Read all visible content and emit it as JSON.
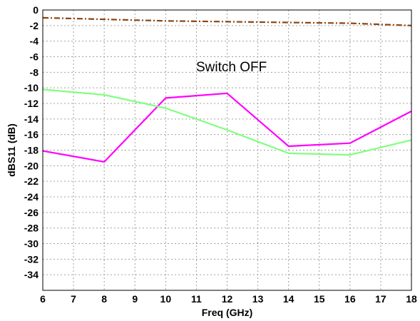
{
  "chart_data": {
    "type": "line",
    "xlabel": "Freq (GHz)",
    "ylabel": "dBS11 (dB)",
    "xlim": [
      6,
      18
    ],
    "ylim": [
      -36,
      0
    ],
    "x_ticks": [
      6,
      7,
      8,
      9,
      10,
      11,
      12,
      13,
      14,
      15,
      16,
      17,
      18
    ],
    "y_ticks": [
      0,
      -2,
      -4,
      -6,
      -8,
      -10,
      -12,
      -14,
      -16,
      -18,
      -20,
      -22,
      -24,
      -26,
      -28,
      -30,
      -32,
      -34
    ],
    "grid": true,
    "annotation": "Switch OFF",
    "series": [
      {
        "color": "#8b4513",
        "dash": "dash-dot",
        "x": [
          6,
          8,
          10,
          12,
          14,
          16,
          18
        ],
        "y": [
          -1.0,
          -1.2,
          -1.4,
          -1.5,
          -1.6,
          -1.7,
          -2.0
        ]
      },
      {
        "color": "#ff00ff",
        "dash": "solid",
        "x": [
          6,
          8,
          10,
          12,
          14,
          16,
          18
        ],
        "y": [
          -18.1,
          -19.5,
          -11.3,
          -10.7,
          -17.5,
          -17.1,
          -13.0
        ]
      },
      {
        "color": "#80ff80",
        "dash": "solid",
        "x": [
          6,
          8,
          10,
          12,
          14,
          16,
          18
        ],
        "y": [
          -10.2,
          -10.9,
          -12.6,
          -15.4,
          -18.4,
          -18.6,
          -16.7
        ]
      }
    ]
  }
}
